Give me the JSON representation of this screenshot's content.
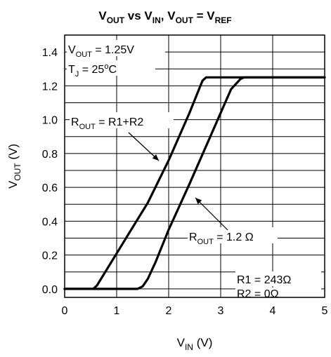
{
  "chart_data": {
    "type": "line",
    "title": {
      "main": "V",
      "parts": [
        {
          "text": "V",
          "sub": "OUT"
        },
        {
          "text": " vs V",
          "sub": "IN"
        },
        {
          "text": ", V",
          "sub": "OUT"
        },
        {
          "text": " = V",
          "sub": "REF"
        }
      ]
    },
    "xlabel": {
      "text": "V",
      "sub": "IN",
      "suffix": " (V)"
    },
    "ylabel": {
      "text": "V",
      "sub": "OUT",
      "suffix": " (V)"
    },
    "xlim": [
      0,
      5
    ],
    "ylim": [
      -0.05,
      1.5
    ],
    "x_ticks": [
      "0",
      "1",
      "2",
      "3",
      "4",
      "5"
    ],
    "y_ticks": [
      "0.0",
      "0.2",
      "0.4",
      "0.6",
      "0.8",
      "1.0",
      "1.2",
      "1.4"
    ],
    "grid": true,
    "series": [
      {
        "x": [
          0,
          0.55,
          0.62,
          0.7,
          1.0,
          1.3,
          1.6,
          2.0,
          2.4,
          2.65,
          2.72,
          5
        ],
        "y": [
          0,
          0,
          0.02,
          0.06,
          0.21,
          0.36,
          0.51,
          0.76,
          1.04,
          1.23,
          1.25,
          1.25
        ]
      },
      {
        "x": [
          0,
          1.4,
          1.5,
          1.6,
          1.75,
          2.0,
          2.4,
          2.8,
          3.2,
          3.38,
          3.45,
          5
        ],
        "y": [
          0,
          0,
          0.015,
          0.06,
          0.16,
          0.35,
          0.62,
          0.9,
          1.18,
          1.24,
          1.25,
          1.25
        ]
      }
    ],
    "annotations": {
      "vout": {
        "text": "V",
        "sub": "OUT",
        "suffix": " = 1.25V"
      },
      "tj": {
        "text": "T",
        "sub": "J",
        "suffix": " = 25",
        "sup": "o",
        "suffix2": "C"
      },
      "rout1": {
        "text": "R",
        "sub": "OUT",
        "suffix": " = R1+R2"
      },
      "rout2": {
        "text": "R",
        "sub": "OUT",
        "suffix": " = 1.2 Ω"
      },
      "r1": "R1 = 243Ω",
      "r2": "R2 = 0Ω"
    }
  }
}
